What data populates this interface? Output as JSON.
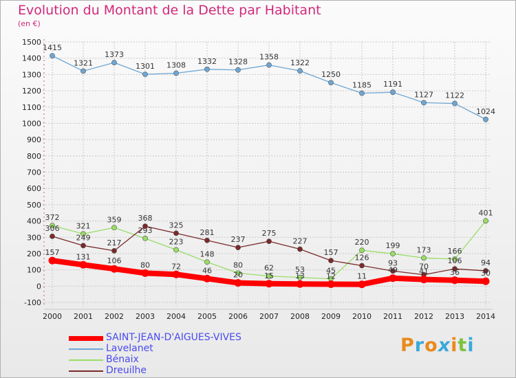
{
  "title": "Evolution du Montant de la Dette par Habitant",
  "subtitle": "(en €)",
  "logo_text": "Proxiti",
  "chart_data": {
    "type": "line",
    "x": [
      "2000",
      "2001",
      "2002",
      "2003",
      "2004",
      "2005",
      "2006",
      "2007",
      "2008",
      "2009",
      "2010",
      "2011",
      "2012",
      "2013",
      "2014"
    ],
    "ylim": [
      -100,
      1500
    ],
    "yticks": [
      -100,
      0,
      100,
      200,
      300,
      400,
      500,
      600,
      700,
      800,
      900,
      1000,
      1100,
      1200,
      1300,
      1400,
      1500
    ],
    "grid": true,
    "legend_position": "bottom-left",
    "series": [
      {
        "name": "SAINT-JEAN-D'AIGUES-VIVES",
        "color": "#ff0000",
        "values": [
          157,
          131,
          106,
          80,
          72,
          46,
          20,
          15,
          13,
          12,
          11,
          49,
          41,
          36,
          30
        ]
      },
      {
        "name": "Lavelanet",
        "color": "#6ea6d3",
        "values": [
          1415,
          1321,
          1373,
          1301,
          1308,
          1332,
          1328,
          1358,
          1322,
          1250,
          1185,
          1191,
          1127,
          1122,
          1024
        ]
      },
      {
        "name": "Bénaix",
        "color": "#99dd66",
        "values": [
          372,
          321,
          359,
          293,
          223,
          148,
          80,
          62,
          53,
          45,
          220,
          199,
          173,
          166,
          401
        ]
      },
      {
        "name": "Dreuilhe",
        "color": "#7a2a2a",
        "values": [
          306,
          249,
          217,
          368,
          325,
          281,
          237,
          275,
          227,
          157,
          126,
          93,
          70,
          106,
          94
        ]
      }
    ]
  }
}
